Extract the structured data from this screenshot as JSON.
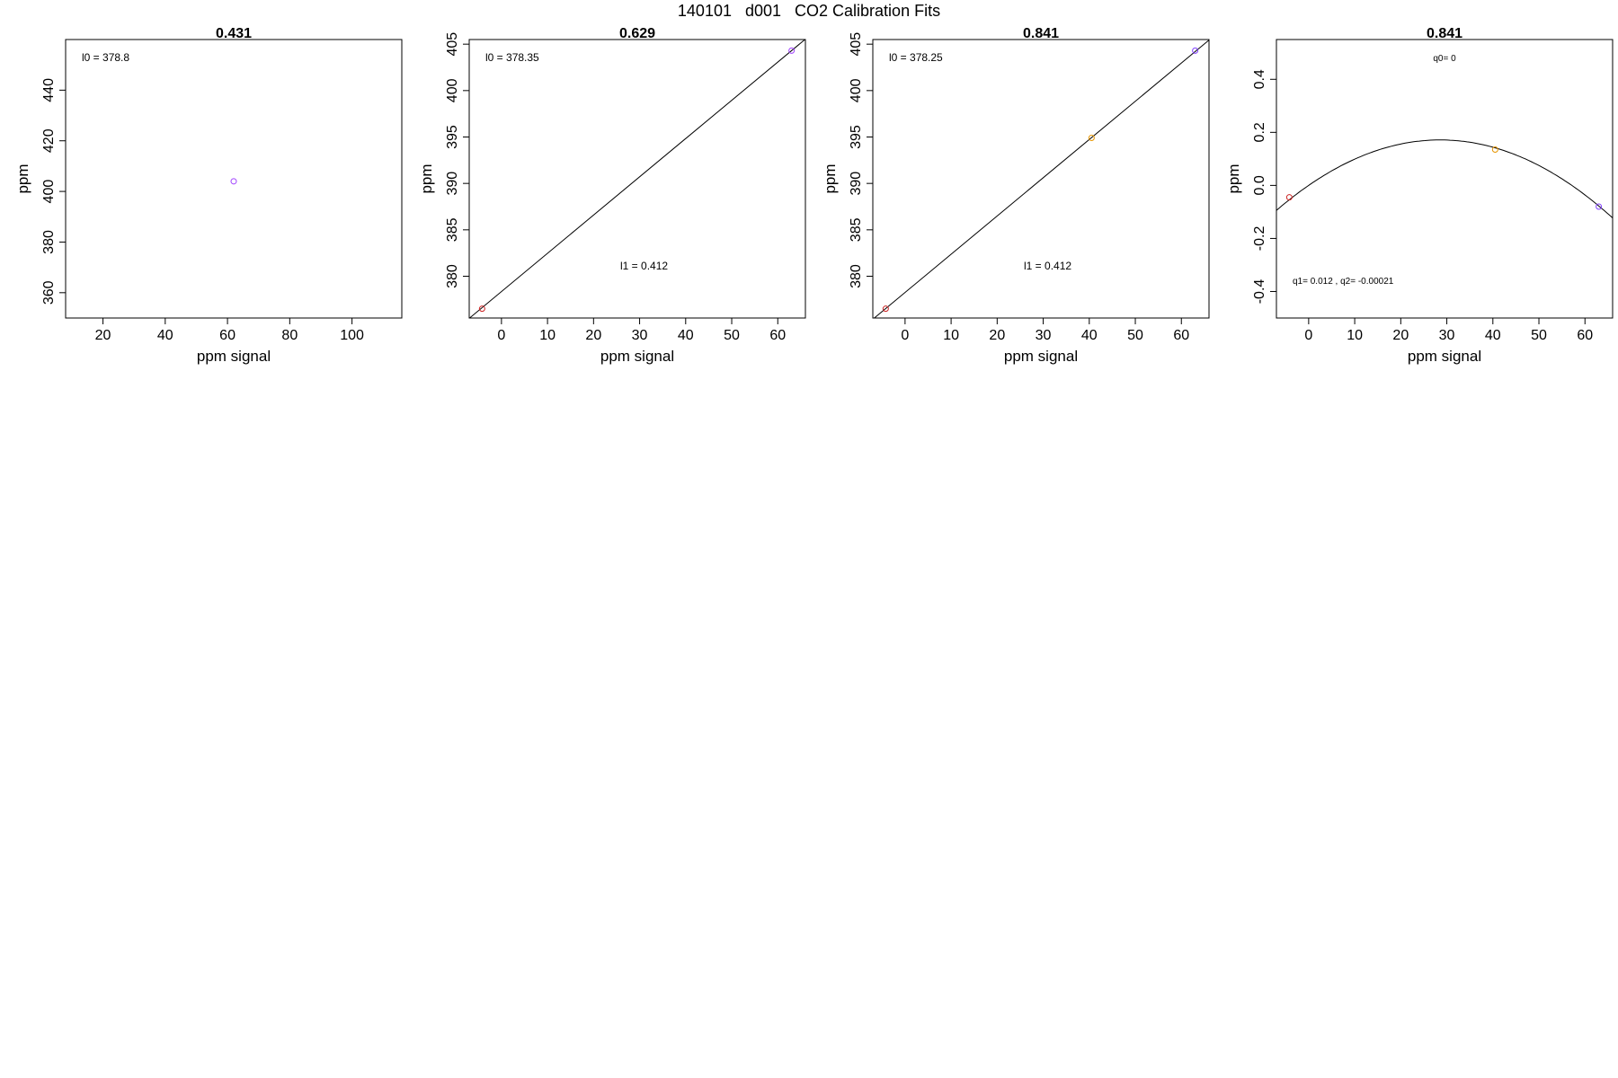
{
  "figure": {
    "title": "140101   d001   CO2 Calibration Fits"
  },
  "colors": {
    "axis": "#000000",
    "fit_line": "#000000",
    "red": "#cc2222",
    "orange": "#e69500",
    "purple": "#a040ff",
    "violet": "#8040ff"
  },
  "chart_data": [
    {
      "type": "scatter",
      "title": "0.431",
      "xlabel": "ppm signal",
      "ylabel": "ppm",
      "xlim": [
        8,
        116
      ],
      "ylim": [
        350,
        460
      ],
      "xticks": [
        20,
        40,
        60,
        80,
        100
      ],
      "yticks": [
        360,
        380,
        400,
        420,
        440
      ],
      "grid": false,
      "points": [
        {
          "x": 62,
          "y": 404,
          "color": "purple"
        }
      ],
      "fit": null,
      "annotations": [
        {
          "text": "l0 =  378.8",
          "at": "top-left"
        }
      ]
    },
    {
      "type": "scatter",
      "title": "0.629",
      "xlabel": "ppm signal",
      "ylabel": "ppm",
      "xlim": [
        -7,
        66
      ],
      "ylim": [
        375.5,
        405.5
      ],
      "xticks": [
        0,
        10,
        20,
        30,
        40,
        50,
        60
      ],
      "yticks": [
        380,
        385,
        390,
        395,
        400,
        405
      ],
      "grid": false,
      "points": [
        {
          "x": -4.2,
          "y": 376.5,
          "color": "red"
        },
        {
          "x": 63.0,
          "y": 404.3,
          "color": "purple"
        }
      ],
      "fit": {
        "kind": "linear",
        "intercept": 378.35,
        "slope": 0.412
      },
      "annotations": [
        {
          "text": "l0 =  378.35",
          "at": "top-left"
        },
        {
          "text": "l1 =  0.412",
          "at": "center-right"
        }
      ]
    },
    {
      "type": "scatter",
      "title": "0.841",
      "xlabel": "ppm signal",
      "ylabel": "ppm",
      "xlim": [
        -7,
        66
      ],
      "ylim": [
        375.5,
        405.5
      ],
      "xticks": [
        0,
        10,
        20,
        30,
        40,
        50,
        60
      ],
      "yticks": [
        380,
        385,
        390,
        395,
        400,
        405
      ],
      "grid": false,
      "points": [
        {
          "x": -4.2,
          "y": 376.5,
          "color": "red"
        },
        {
          "x": 40.5,
          "y": 394.9,
          "color": "orange"
        },
        {
          "x": 63.0,
          "y": 404.3,
          "color": "violet"
        }
      ],
      "fit": {
        "kind": "linear",
        "intercept": 378.25,
        "slope": 0.412
      },
      "annotations": [
        {
          "text": "l0 =  378.25",
          "at": "top-left"
        },
        {
          "text": "l1 =  0.412",
          "at": "center-right"
        }
      ]
    },
    {
      "type": "scatter",
      "title": "0.841",
      "xlabel": "ppm signal",
      "ylabel": "ppm",
      "xlim": [
        -7,
        66
      ],
      "ylim": [
        -0.5,
        0.55
      ],
      "xticks": [
        0,
        10,
        20,
        30,
        40,
        50,
        60
      ],
      "yticks": [
        -0.4,
        -0.2,
        0.0,
        0.2,
        0.4
      ],
      "ytick_labels": [
        "-0.4",
        "-0.2",
        "0.0",
        "0.2",
        "0.4"
      ],
      "grid": false,
      "points": [
        {
          "x": -4.2,
          "y": -0.045,
          "color": "red"
        },
        {
          "x": 40.5,
          "y": 0.135,
          "color": "orange"
        },
        {
          "x": 63.0,
          "y": -0.08,
          "color": "violet"
        }
      ],
      "fit": {
        "kind": "quadratic",
        "c0": 0.0,
        "c1": 0.012,
        "c2": -0.00021
      },
      "annotations": [
        {
          "text": "q0= 0",
          "at": "top-center"
        },
        {
          "text": "q1= 0.012 , q2= -0.00021",
          "at": "bottom-left"
        }
      ]
    }
  ]
}
